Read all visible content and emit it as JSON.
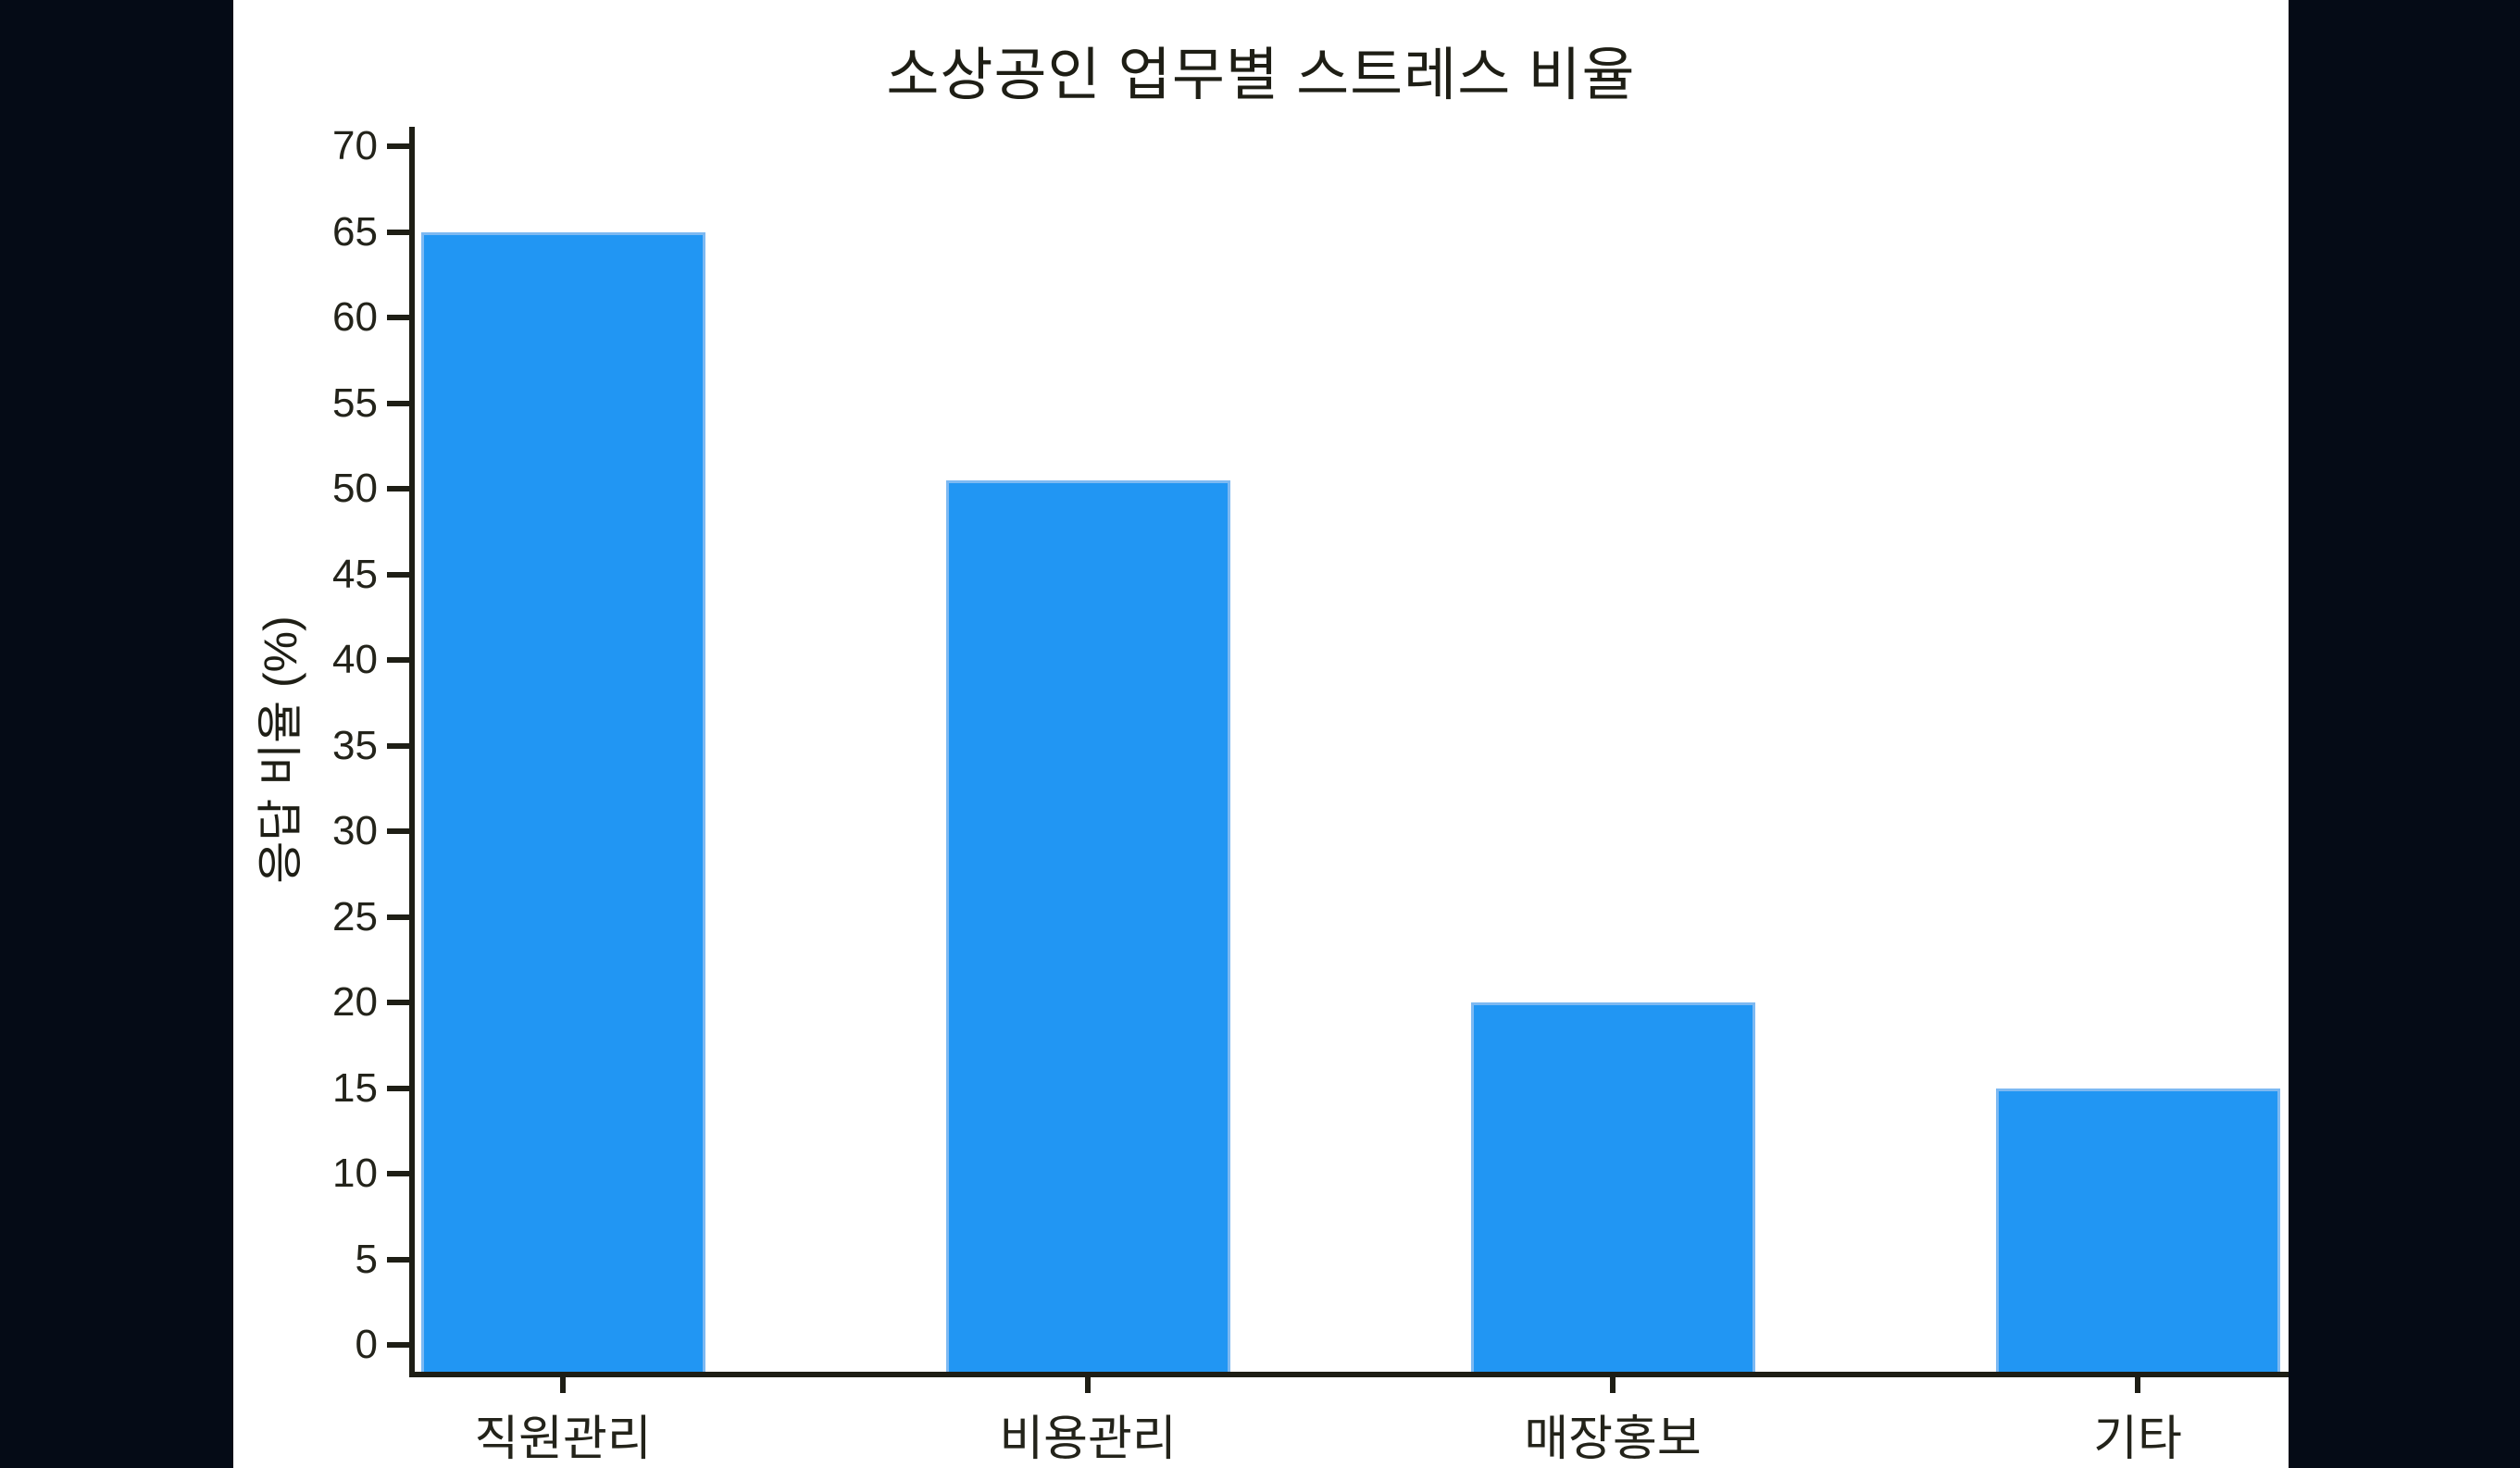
{
  "chart_data": {
    "type": "bar",
    "title": "소상공인 업무별 스트레스 비율",
    "ylabel": "응답 비율 (%)",
    "xlabel": "",
    "categories": [
      "직원관리",
      "비용관리",
      "매장홍보",
      "기타"
    ],
    "values": [
      65,
      50.5,
      20,
      15
    ],
    "ylim": [
      0,
      70
    ],
    "ytick_step": 5,
    "ytick_labels": [
      "0",
      "5",
      "10",
      "15",
      "20",
      "25",
      "30",
      "35",
      "40",
      "45",
      "50",
      "55",
      "60",
      "65",
      "70"
    ],
    "grid": false,
    "legend": "none",
    "colors": {
      "bar_fill": "#2196f3",
      "bar_edge": "#7db9f2",
      "axis": "#1e1e15",
      "tick_text": "#23231a",
      "panel_background": "#ffffff",
      "page_background": "#050b16"
    }
  }
}
